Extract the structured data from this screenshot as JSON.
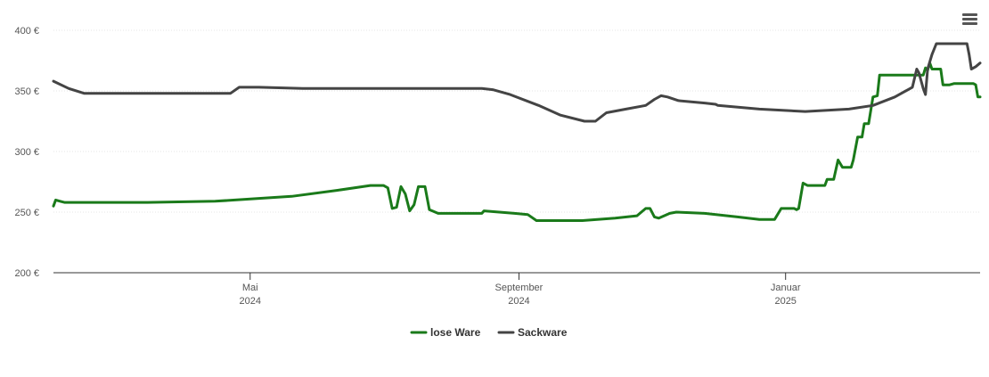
{
  "menu": {
    "icon": "hamburger-menu-icon"
  },
  "chart_data": {
    "type": "line",
    "title": "",
    "xlabel": "",
    "ylabel": "",
    "ylim": [
      200,
      400
    ],
    "xlim": [
      "2024-02-01",
      "2025-03-31"
    ],
    "yticks": [
      {
        "value": 200,
        "label": "200 €"
      },
      {
        "value": 250,
        "label": "250 €"
      },
      {
        "value": 300,
        "label": "300 €"
      },
      {
        "value": 350,
        "label": "350 €"
      },
      {
        "value": 400,
        "label": "400 €"
      }
    ],
    "xticks": [
      {
        "date": "2024-05-01",
        "line1": "Mai",
        "line2": "2024"
      },
      {
        "date": "2024-09-01",
        "line1": "September",
        "line2": "2024"
      },
      {
        "date": "2025-01-01",
        "line1": "Januar",
        "line2": "2025"
      }
    ],
    "grid": true,
    "legend_position": "bottom-center",
    "series": [
      {
        "name": "lose Ware",
        "color": "#1a7a1a",
        "points": [
          [
            "2024-02-01",
            255
          ],
          [
            "2024-02-02",
            260
          ],
          [
            "2024-02-04",
            259
          ],
          [
            "2024-02-06",
            258
          ],
          [
            "2024-02-20",
            258
          ],
          [
            "2024-03-15",
            258
          ],
          [
            "2024-04-15",
            259
          ],
          [
            "2024-05-20",
            263
          ],
          [
            "2024-06-10",
            268
          ],
          [
            "2024-06-25",
            272
          ],
          [
            "2024-07-01",
            272
          ],
          [
            "2024-07-03",
            270
          ],
          [
            "2024-07-05",
            253
          ],
          [
            "2024-07-07",
            254
          ],
          [
            "2024-07-09",
            271
          ],
          [
            "2024-07-11",
            265
          ],
          [
            "2024-07-13",
            251
          ],
          [
            "2024-07-15",
            256
          ],
          [
            "2024-07-17",
            271
          ],
          [
            "2024-07-20",
            271
          ],
          [
            "2024-07-22",
            252
          ],
          [
            "2024-07-26",
            249
          ],
          [
            "2024-08-15",
            249
          ],
          [
            "2024-08-16",
            251
          ],
          [
            "2024-08-30",
            249
          ],
          [
            "2024-09-05",
            248
          ],
          [
            "2024-09-09",
            243
          ],
          [
            "2024-09-30",
            243
          ],
          [
            "2024-10-15",
            245
          ],
          [
            "2024-10-25",
            247
          ],
          [
            "2024-10-29",
            253
          ],
          [
            "2024-10-31",
            253
          ],
          [
            "2024-11-02",
            246
          ],
          [
            "2024-11-04",
            245
          ],
          [
            "2024-11-09",
            249
          ],
          [
            "2024-11-12",
            250
          ],
          [
            "2024-11-25",
            249
          ],
          [
            "2024-12-10",
            246
          ],
          [
            "2024-12-20",
            244
          ],
          [
            "2024-12-27",
            244
          ],
          [
            "2024-12-30",
            253
          ],
          [
            "2025-01-05",
            253
          ],
          [
            "2025-01-06",
            252
          ],
          [
            "2025-01-07",
            253
          ],
          [
            "2025-01-09",
            274
          ],
          [
            "2025-01-11",
            272
          ],
          [
            "2025-01-17",
            272
          ],
          [
            "2025-01-19",
            272
          ],
          [
            "2025-01-20",
            277
          ],
          [
            "2025-01-23",
            277
          ],
          [
            "2025-01-25",
            293
          ],
          [
            "2025-01-27",
            287
          ],
          [
            "2025-01-31",
            287
          ],
          [
            "2025-02-01",
            293
          ],
          [
            "2025-02-03",
            312
          ],
          [
            "2025-02-05",
            312
          ],
          [
            "2025-02-06",
            323
          ],
          [
            "2025-02-08",
            323
          ],
          [
            "2025-02-10",
            345
          ],
          [
            "2025-02-12",
            346
          ],
          [
            "2025-02-13",
            363
          ],
          [
            "2025-02-28",
            363
          ],
          [
            "2025-03-05",
            363
          ],
          [
            "2025-03-06",
            369
          ],
          [
            "2025-03-07",
            367
          ],
          [
            "2025-03-08",
            373
          ],
          [
            "2025-03-09",
            368
          ],
          [
            "2025-03-13",
            368
          ],
          [
            "2025-03-14",
            355
          ],
          [
            "2025-03-17",
            355
          ],
          [
            "2025-03-19",
            356
          ],
          [
            "2025-03-28",
            356
          ],
          [
            "2025-03-29",
            355
          ],
          [
            "2025-03-30",
            345
          ],
          [
            "2025-03-31",
            345
          ]
        ]
      },
      {
        "name": "Sackware",
        "color": "#444444",
        "points": [
          [
            "2024-02-01",
            358
          ],
          [
            "2024-02-08",
            352
          ],
          [
            "2024-02-15",
            348
          ],
          [
            "2024-03-15",
            348
          ],
          [
            "2024-04-22",
            348
          ],
          [
            "2024-04-26",
            353
          ],
          [
            "2024-05-05",
            353
          ],
          [
            "2024-05-25",
            352
          ],
          [
            "2024-07-15",
            352
          ],
          [
            "2024-08-15",
            352
          ],
          [
            "2024-08-20",
            351
          ],
          [
            "2024-08-28",
            347
          ],
          [
            "2024-09-10",
            338
          ],
          [
            "2024-09-20",
            330
          ],
          [
            "2024-10-01",
            325
          ],
          [
            "2024-10-06",
            325
          ],
          [
            "2024-10-11",
            332
          ],
          [
            "2024-10-20",
            335
          ],
          [
            "2024-10-29",
            338
          ],
          [
            "2024-11-02",
            343
          ],
          [
            "2024-11-05",
            346
          ],
          [
            "2024-11-08",
            345
          ],
          [
            "2024-11-13",
            342
          ],
          [
            "2024-11-25",
            340
          ],
          [
            "2024-11-30",
            339
          ],
          [
            "2024-12-01",
            338
          ],
          [
            "2024-12-20",
            335
          ],
          [
            "2025-01-10",
            333
          ],
          [
            "2025-01-30",
            335
          ],
          [
            "2025-02-10",
            338
          ],
          [
            "2025-02-20",
            345
          ],
          [
            "2025-02-25",
            350
          ],
          [
            "2025-02-28",
            353
          ],
          [
            "2025-03-02",
            368
          ],
          [
            "2025-03-03",
            365
          ],
          [
            "2025-03-05",
            352
          ],
          [
            "2025-03-06",
            347
          ],
          [
            "2025-03-07",
            368
          ],
          [
            "2025-03-09",
            380
          ],
          [
            "2025-03-11",
            389
          ],
          [
            "2025-03-15",
            389
          ],
          [
            "2025-03-22",
            389
          ],
          [
            "2025-03-25",
            389
          ],
          [
            "2025-03-26",
            380
          ],
          [
            "2025-03-27",
            368
          ],
          [
            "2025-03-29",
            370
          ],
          [
            "2025-03-31",
            373
          ]
        ]
      }
    ]
  }
}
